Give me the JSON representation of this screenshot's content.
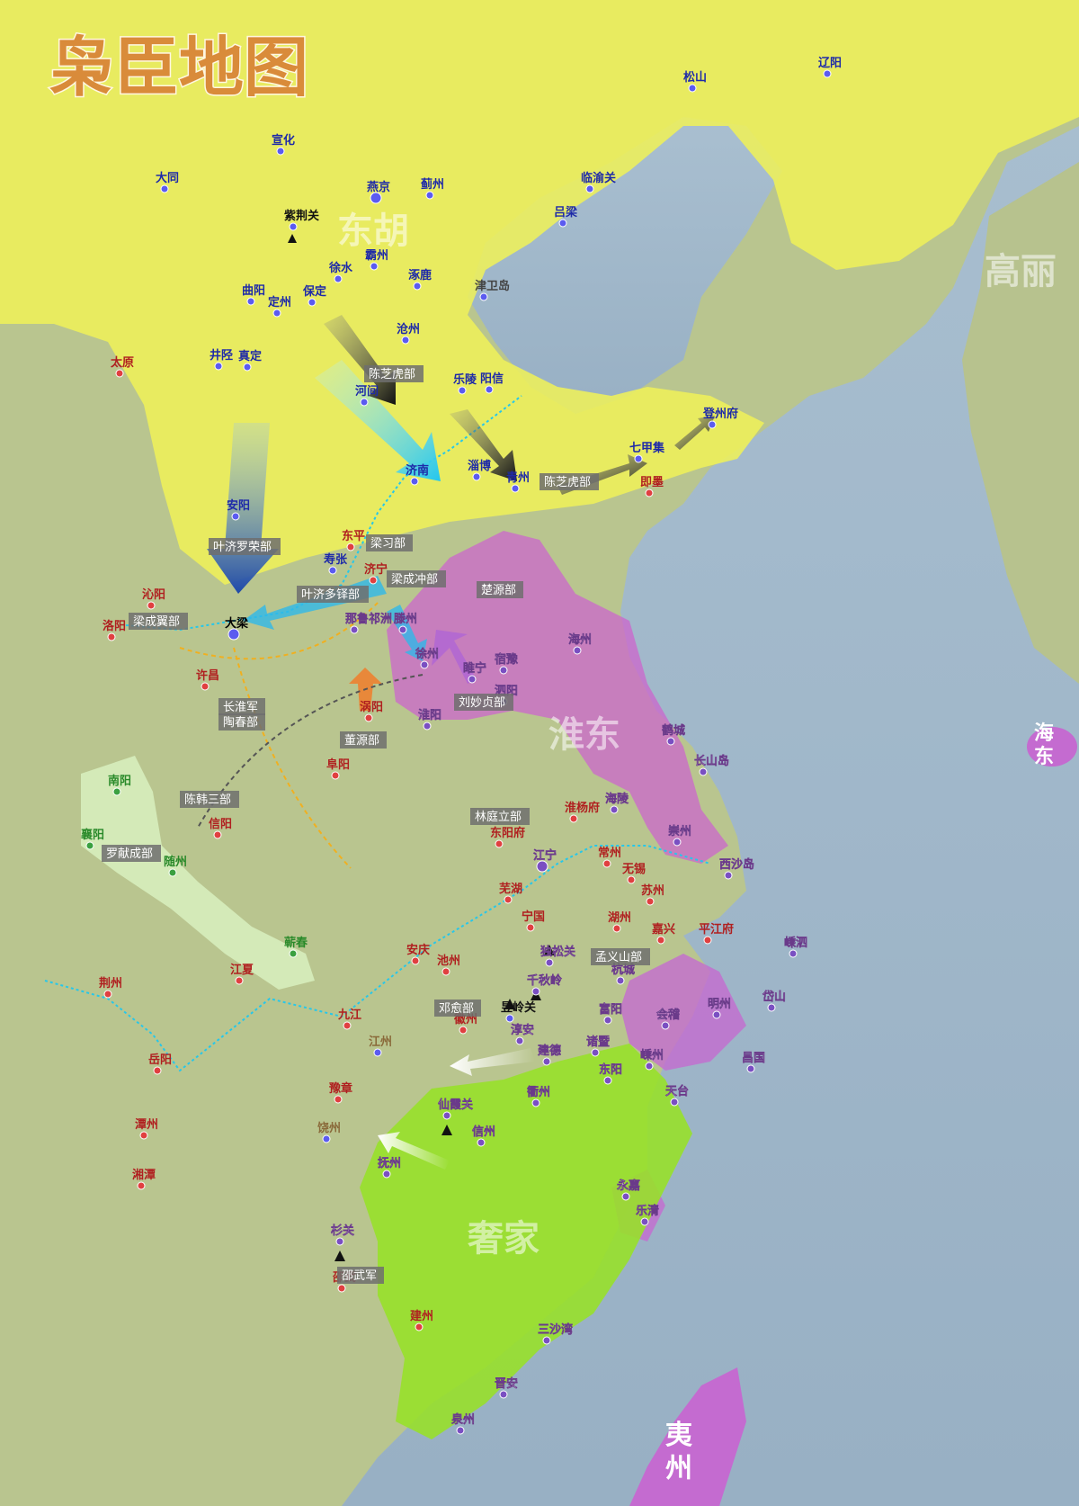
{
  "title": "枭臣地图",
  "regions": {
    "donghu": "东胡",
    "gaoli": "高丽",
    "huaidong": "淮东",
    "haidong": "海东",
    "xijia": "奢家",
    "yizhou": "夷州"
  },
  "cities": [
    {
      "id": "liaoyang",
      "name": "辽阳",
      "color": "#1e2aa8"
    },
    {
      "id": "songshan",
      "name": "松山",
      "color": "#1e2aa8"
    },
    {
      "id": "yanjing",
      "name": "燕京",
      "color": "#1e2aa8"
    },
    {
      "id": "xuanhua",
      "name": "宣化",
      "color": "#1e2aa8"
    },
    {
      "id": "datong",
      "name": "大同",
      "color": "#1e2aa8"
    },
    {
      "id": "zijingguan",
      "name": "紫荆关",
      "color": "#111"
    },
    {
      "id": "jizhou",
      "name": "蓟州",
      "color": "#1e2aa8"
    },
    {
      "id": "shanhaiguan",
      "name": "临渝关",
      "color": "#1e2aa8"
    },
    {
      "id": "lvliang",
      "name": "吕梁",
      "color": "#1e2aa8"
    },
    {
      "id": "bazhou",
      "name": "霸州",
      "color": "#1e2aa8"
    },
    {
      "id": "xushui",
      "name": "徐水",
      "color": "#1e2aa8"
    },
    {
      "id": "baoding",
      "name": "保定",
      "color": "#1e2aa8"
    },
    {
      "id": "zhuozhou",
      "name": "涿鹿",
      "color": "#1e2aa8"
    },
    {
      "id": "quyang",
      "name": "曲阳",
      "color": "#1e2aa8"
    },
    {
      "id": "dingzhou",
      "name": "定州",
      "color": "#1e2aa8"
    },
    {
      "id": "jinwei",
      "name": "津卫岛",
      "color": "#444"
    },
    {
      "id": "cangzhou",
      "name": "沧州",
      "color": "#1e2aa8"
    },
    {
      "id": "jingxing",
      "name": "井陉",
      "color": "#1e2aa8"
    },
    {
      "id": "zhending",
      "name": "真定",
      "color": "#1e2aa8"
    },
    {
      "id": "taiyuan",
      "name": "太原",
      "color": "#b02020"
    },
    {
      "id": "hejian",
      "name": "河间",
      "color": "#1e2aa8"
    },
    {
      "id": "leling",
      "name": "乐陵",
      "color": "#1e2aa8"
    },
    {
      "id": "yangxin",
      "name": "阳信",
      "color": "#1e2aa8"
    },
    {
      "id": "dengzhoufu",
      "name": "登州府",
      "color": "#1e2aa8"
    },
    {
      "id": "jinan",
      "name": "济南",
      "color": "#1e2aa8"
    },
    {
      "id": "zibo",
      "name": "淄博",
      "color": "#1e2aa8"
    },
    {
      "id": "qingzhou",
      "name": "青州",
      "color": "#1e2aa8"
    },
    {
      "id": "qijiaji",
      "name": "七甲集",
      "color": "#1e2aa8"
    },
    {
      "id": "jimo",
      "name": "即墨",
      "color": "#b02020"
    },
    {
      "id": "anyang",
      "name": "安阳",
      "color": "#1e2aa8"
    },
    {
      "id": "dongping",
      "name": "东平",
      "color": "#b02020"
    },
    {
      "id": "shouzhang",
      "name": "寿张",
      "color": "#1e2aa8"
    },
    {
      "id": "jining",
      "name": "济宁",
      "color": "#b02020"
    },
    {
      "id": "qinyang",
      "name": "沁阳",
      "color": "#b02020"
    },
    {
      "id": "daliang",
      "name": "大梁",
      "color": "#000"
    },
    {
      "id": "luoyang",
      "name": "洛阳",
      "color": "#b02020"
    },
    {
      "id": "xuchang",
      "name": "许昌",
      "color": "#b02020"
    },
    {
      "id": "nabiqi",
      "name": "那鲁祁洲",
      "color": "#fff"
    },
    {
      "id": "tengzhou",
      "name": "滕州",
      "color": "#fff"
    },
    {
      "id": "xuzhou",
      "name": "徐州",
      "color": "#fff"
    },
    {
      "id": "suining",
      "name": "睢宁",
      "color": "#fff"
    },
    {
      "id": "suqian",
      "name": "宿豫",
      "color": "#fff"
    },
    {
      "id": "sizhou",
      "name": "泗阳",
      "color": "#fff"
    },
    {
      "id": "huaiyang",
      "name": "淮阳",
      "color": "#fff"
    },
    {
      "id": "guoyang",
      "name": "涡阳",
      "color": "#b02020"
    },
    {
      "id": "haizhou",
      "name": "海州",
      "color": "#fff"
    },
    {
      "id": "fuyang",
      "name": "阜阳",
      "color": "#b02020"
    },
    {
      "id": "hecheng",
      "name": "鹤城",
      "color": "#fff"
    },
    {
      "id": "changshandao",
      "name": "长山岛",
      "color": "#fff"
    },
    {
      "id": "nanyang",
      "name": "南阳",
      "color": "#2a8a2a"
    },
    {
      "id": "xiangyang",
      "name": "襄阳",
      "color": "#2a8a2a"
    },
    {
      "id": "suizhou",
      "name": "随州",
      "color": "#2a8a2a"
    },
    {
      "id": "xinyang",
      "name": "信阳",
      "color": "#b02020"
    },
    {
      "id": "hailing",
      "name": "海陵",
      "color": "#fff"
    },
    {
      "id": "huaiyangfu",
      "name": "淮杨府",
      "color": "#b02020"
    },
    {
      "id": "dongyangfu",
      "name": "东阳府",
      "color": "#b02020"
    },
    {
      "id": "chongzhou",
      "name": "崇州",
      "color": "#fff"
    },
    {
      "id": "jiangning",
      "name": "江宁",
      "color": "#fff"
    },
    {
      "id": "xishadao",
      "name": "西沙岛",
      "color": "#fff"
    },
    {
      "id": "changzhou",
      "name": "常州",
      "color": "#b02020"
    },
    {
      "id": "wuxi",
      "name": "无锡",
      "color": "#b02020"
    },
    {
      "id": "suzhou",
      "name": "苏州",
      "color": "#b02020"
    },
    {
      "id": "wuhu",
      "name": "芜湖",
      "color": "#b02020"
    },
    {
      "id": "ningguo",
      "name": "宁国",
      "color": "#b02020"
    },
    {
      "id": "huzhou",
      "name": "湖州",
      "color": "#b02020"
    },
    {
      "id": "jiaxing",
      "name": "嘉兴",
      "color": "#b02020"
    },
    {
      "id": "pingjiangfu",
      "name": "平江府",
      "color": "#b02020"
    },
    {
      "id": "shengsi",
      "name": "嵊泗",
      "color": "#fff"
    },
    {
      "id": "qichun",
      "name": "蕲春",
      "color": "#2a8a2a"
    },
    {
      "id": "jiangxia",
      "name": "江夏",
      "color": "#b02020"
    },
    {
      "id": "anqing",
      "name": "安庆",
      "color": "#b02020"
    },
    {
      "id": "chizhou",
      "name": "池州",
      "color": "#b02020"
    },
    {
      "id": "dushongguan",
      "name": "独松关",
      "color": "#fff"
    },
    {
      "id": "hangcheng",
      "name": "杭城",
      "color": "#fff"
    },
    {
      "id": "daishan",
      "name": "岱山",
      "color": "#fff"
    },
    {
      "id": "jingzhou",
      "name": "荆州",
      "color": "#b02020"
    },
    {
      "id": "qianqiuling",
      "name": "千秋岭",
      "color": "#fff"
    },
    {
      "id": "yulingguan",
      "name": "昱岭关",
      "color": "#111"
    },
    {
      "id": "huizhou",
      "name": "徽州",
      "color": "#b02020"
    },
    {
      "id": "fuyang2",
      "name": "富阳",
      "color": "#fff"
    },
    {
      "id": "mingzhou",
      "name": "明州",
      "color": "#fff"
    },
    {
      "id": "jiujiang",
      "name": "九江",
      "color": "#b02020"
    },
    {
      "id": "jiangzhou",
      "name": "江州",
      "color": "#8a6a3a"
    },
    {
      "id": "chunan",
      "name": "淳安",
      "color": "#fff"
    },
    {
      "id": "kuaiji",
      "name": "会稽",
      "color": "#fff"
    },
    {
      "id": "zhuji",
      "name": "诸暨",
      "color": "#fff"
    },
    {
      "id": "jiande",
      "name": "建德",
      "color": "#fff"
    },
    {
      "id": "shengzhou",
      "name": "嵊州",
      "color": "#fff"
    },
    {
      "id": "changguo",
      "name": "昌国",
      "color": "#fff"
    },
    {
      "id": "yueyang",
      "name": "岳阳",
      "color": "#b02020"
    },
    {
      "id": "dongyang",
      "name": "东阳",
      "color": "#fff"
    },
    {
      "id": "quzhou",
      "name": "衢州",
      "color": "#fff"
    },
    {
      "id": "tiantai",
      "name": "天台",
      "color": "#fff"
    },
    {
      "id": "yuzhang",
      "name": "豫章",
      "color": "#b02020"
    },
    {
      "id": "xianxiaguan",
      "name": "仙霞关",
      "color": "#fff"
    },
    {
      "id": "xinzhou",
      "name": "信州",
      "color": "#fff"
    },
    {
      "id": "raozhou",
      "name": "饶州",
      "color": "#8a6a3a"
    },
    {
      "id": "tanzhou",
      "name": "潭州",
      "color": "#b02020"
    },
    {
      "id": "xiangtan",
      "name": "湘潭",
      "color": "#b02020"
    },
    {
      "id": "fuzhou",
      "name": "抚州",
      "color": "#fff"
    },
    {
      "id": "yongjia",
      "name": "永嘉",
      "color": "#fff"
    },
    {
      "id": "yueqing",
      "name": "乐清",
      "color": "#fff"
    },
    {
      "id": "shanguan",
      "name": "杉关",
      "color": "#fff"
    },
    {
      "id": "shaowu",
      "name": "邵武",
      "color": "#b02020"
    },
    {
      "id": "jianzhou",
      "name": "建州",
      "color": "#b02020"
    },
    {
      "id": "sanshawan",
      "name": "三沙湾",
      "color": "#fff"
    },
    {
      "id": "jinan2",
      "name": "晋安",
      "color": "#fff"
    },
    {
      "id": "quanzhou",
      "name": "泉州",
      "color": "#fff"
    }
  ],
  "units": [
    "陈芝虎部",
    "陈芝虎部",
    "叶济罗荣部",
    "梁习部",
    "梁成冲部",
    "叶济多铎部",
    "梁成翼部",
    "楚源部",
    "长淮军",
    "陶春部",
    "刘妙贞部",
    "董源部",
    "陈韩三部",
    "罗献成部",
    "林庭立部",
    "孟义山部",
    "邓愈部",
    "邵武军"
  ]
}
